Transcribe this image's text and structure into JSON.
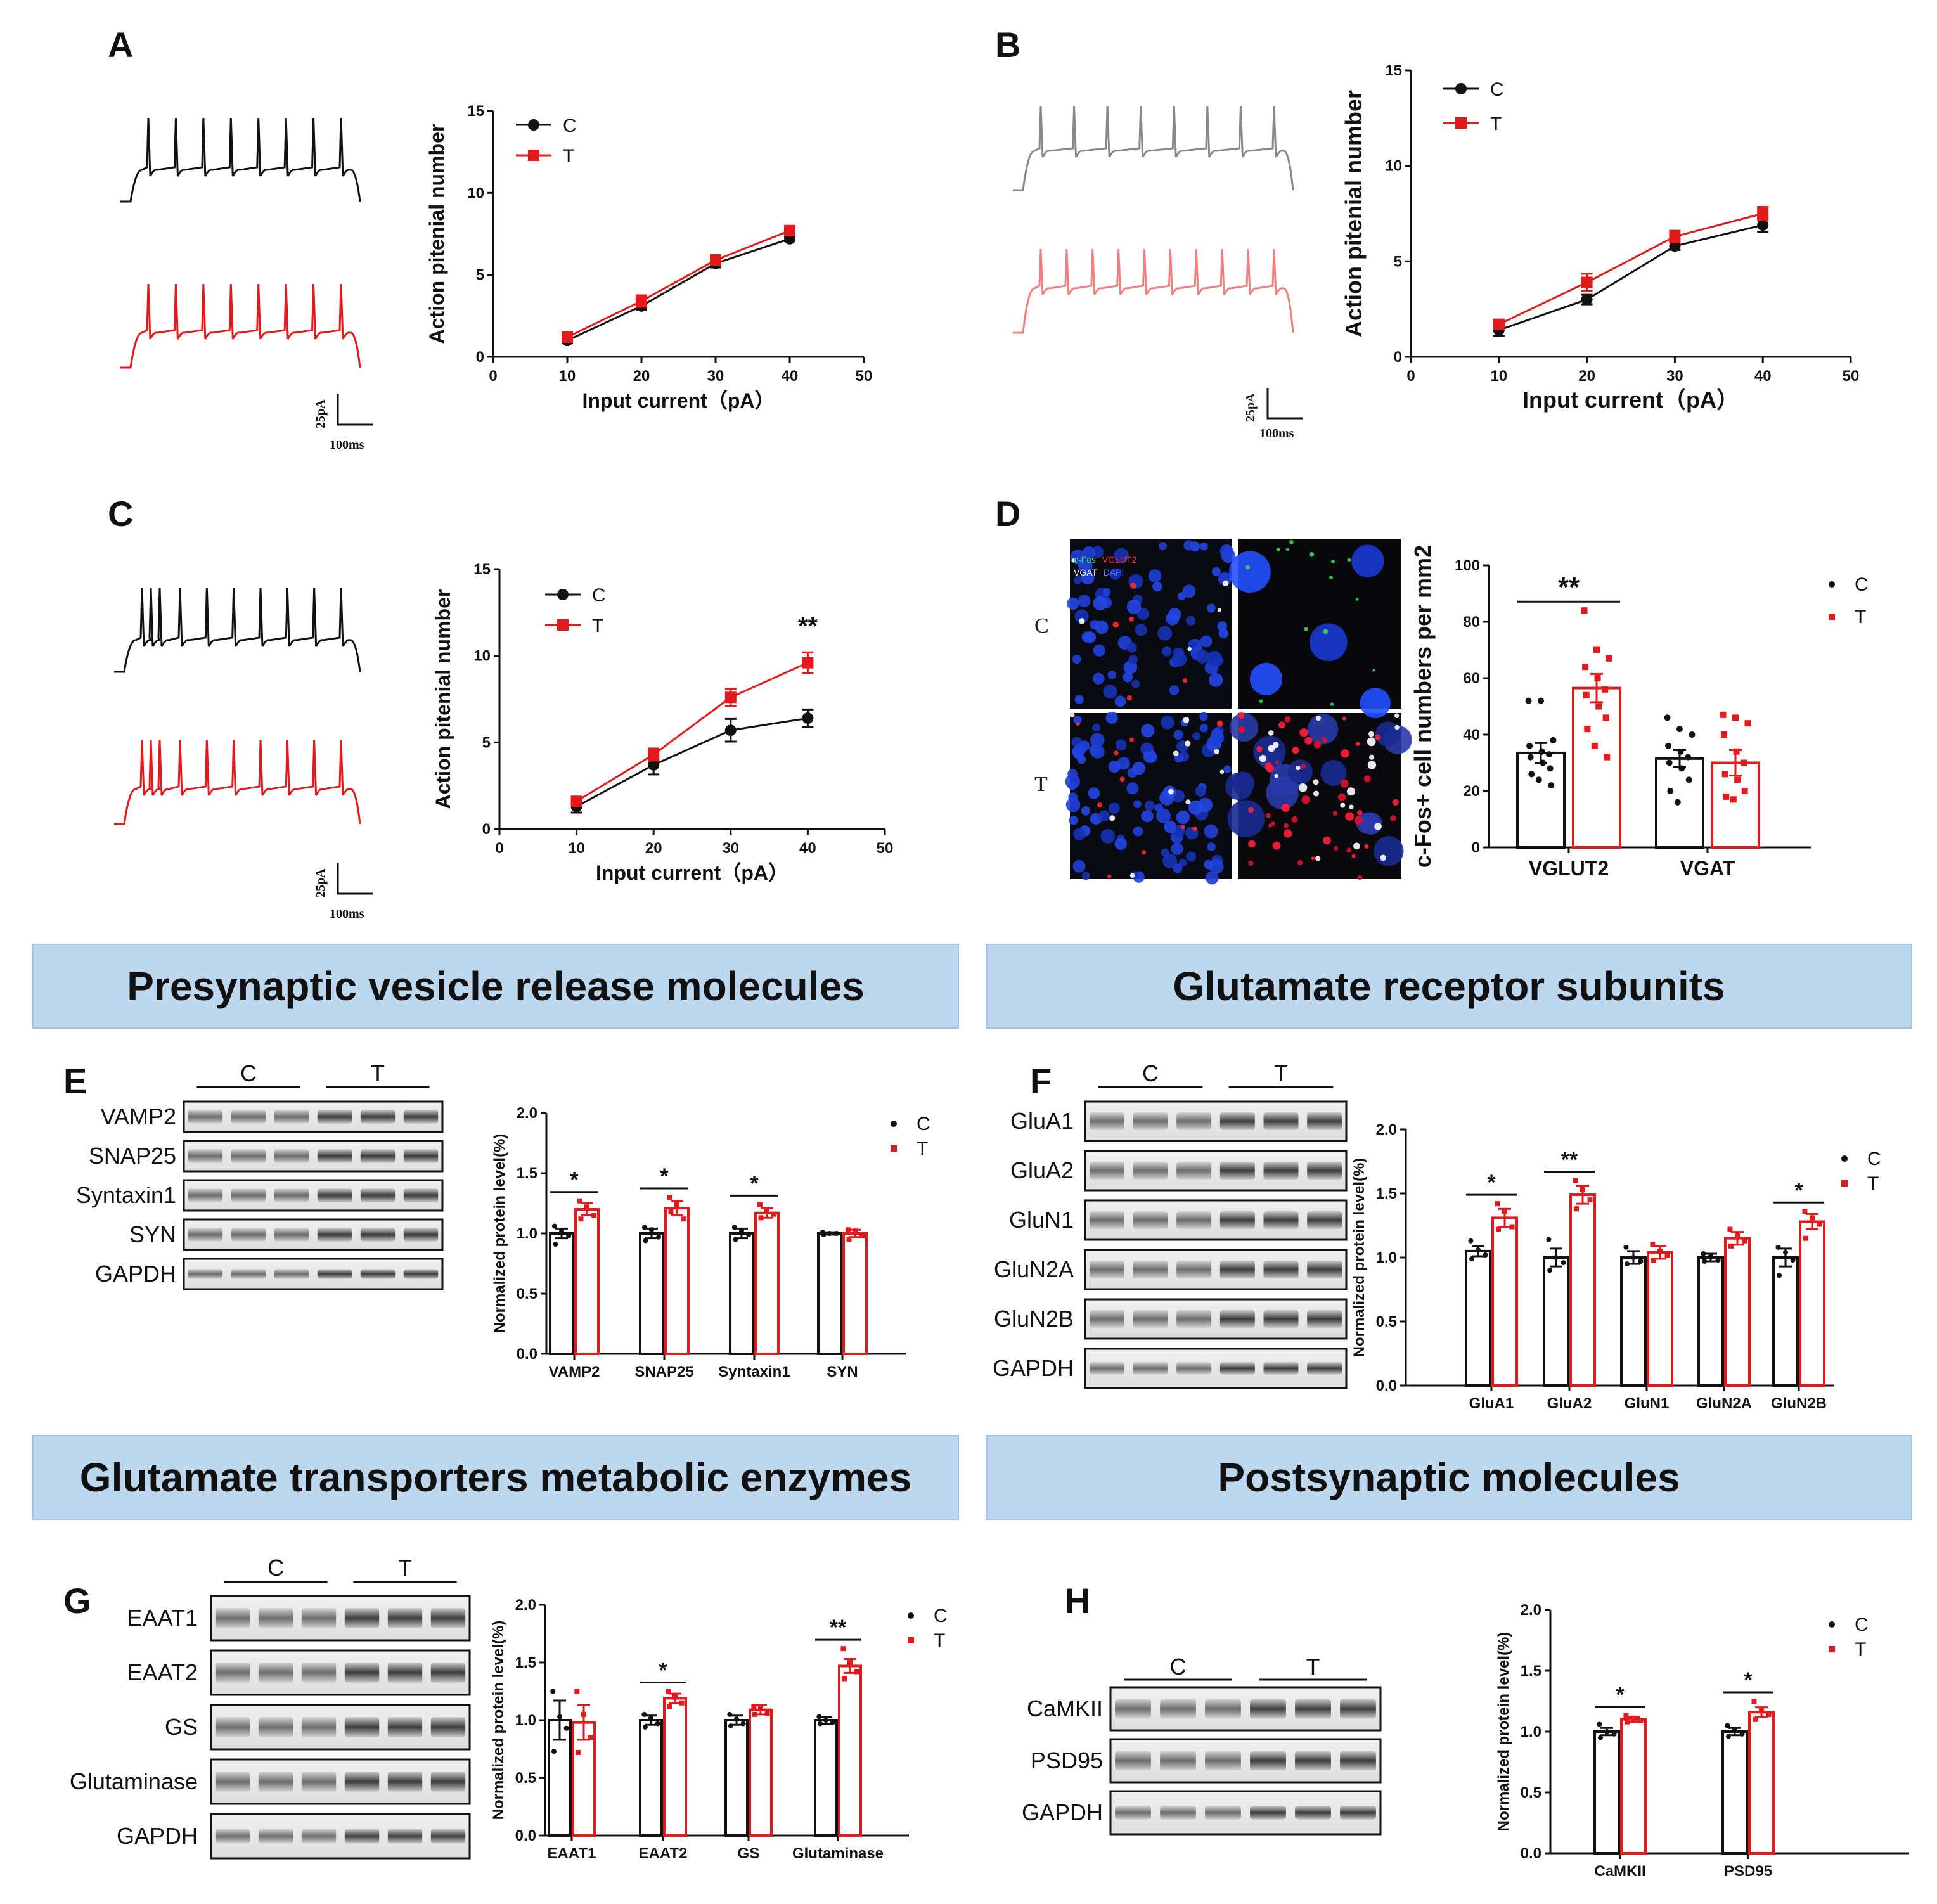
{
  "colors": {
    "control": "#111111",
    "treated": "#e31a1c",
    "banner": "#bdd7ee",
    "banner_border": "#9dc3e6"
  },
  "panel_letters": {
    "A": "A",
    "B": "B",
    "C": "C",
    "D": "D",
    "E": "E",
    "F": "F",
    "G": "G",
    "H": "H"
  },
  "section_headers": {
    "presynaptic": "Presynaptic vesicle release molecules",
    "glutamate_receptor": "Glutamate receptor subunits",
    "transporters": "Glutamate transporters metabolic enzymes",
    "postsynaptic": "Postsynaptic molecules"
  },
  "scale_bar": {
    "current": "25pA",
    "time": "100ms"
  },
  "microscopy": {
    "row_c": "C",
    "row_t": "T",
    "stain_line1_a": "c-Fos",
    "stain_line1_b": "VGLUT2",
    "stain_line2_a": "VGAT",
    "stain_line2_b": "DAPI"
  },
  "blot_groups": {
    "control": "C",
    "treated": "T"
  },
  "blots": {
    "E": [
      "VAMP2",
      "SNAP25",
      "Syntaxin1",
      "SYN",
      "GAPDH"
    ],
    "F": [
      "GluA1",
      "GluA2",
      "GluN1",
      "GluN2A",
      "GluN2B",
      "GAPDH"
    ],
    "G": [
      "EAAT1",
      "EAAT2",
      "GS",
      "Glutaminase",
      "GAPDH"
    ],
    "H": [
      "CaMKII",
      "PSD95",
      "GAPDH"
    ]
  },
  "chart_data": [
    {
      "id": "A",
      "type": "line",
      "title": "",
      "xlabel": "Input current（pA）",
      "ylabel": "Action pitenial number",
      "xlim": [
        0,
        50
      ],
      "ylim": [
        0,
        15
      ],
      "xticks": [
        0,
        10,
        20,
        30,
        40,
        50
      ],
      "yticks": [
        0,
        5,
        10,
        15
      ],
      "legend_position": "top-left",
      "series": [
        {
          "name": "C",
          "x": [
            10,
            20,
            30,
            40
          ],
          "y": [
            1.0,
            3.1,
            5.7,
            7.2
          ],
          "err": [
            0.15,
            0.25,
            0.25,
            0.15
          ]
        },
        {
          "name": "T",
          "x": [
            10,
            20,
            30,
            40
          ],
          "y": [
            1.2,
            3.4,
            5.9,
            7.7
          ],
          "err": [
            0.15,
            0.35,
            0.3,
            0.2
          ]
        }
      ],
      "annotations": []
    },
    {
      "id": "B",
      "type": "line",
      "title": "",
      "xlabel": "Input current（pA）",
      "ylabel": "Action pitenial number",
      "xlim": [
        0,
        50
      ],
      "ylim": [
        0,
        15
      ],
      "xticks": [
        0,
        10,
        20,
        30,
        40,
        50
      ],
      "yticks": [
        0,
        5,
        10,
        15
      ],
      "legend_position": "top-left",
      "series": [
        {
          "name": "C",
          "x": [
            10,
            20,
            30,
            40
          ],
          "y": [
            1.4,
            3.0,
            5.8,
            6.9
          ],
          "err": [
            0.3,
            0.25,
            0.2,
            0.35
          ]
        },
        {
          "name": "T",
          "x": [
            10,
            20,
            30,
            40
          ],
          "y": [
            1.7,
            3.9,
            6.3,
            7.5
          ],
          "err": [
            0.25,
            0.45,
            0.3,
            0.35
          ]
        }
      ],
      "annotations": []
    },
    {
      "id": "C",
      "type": "line",
      "title": "",
      "xlabel": "Input current（pA）",
      "ylabel": "Action pitenial number",
      "xlim": [
        0,
        50
      ],
      "ylim": [
        0,
        15
      ],
      "xticks": [
        0,
        10,
        20,
        30,
        40,
        50
      ],
      "yticks": [
        0,
        5,
        10,
        15
      ],
      "legend_position": "top-left",
      "series": [
        {
          "name": "C",
          "x": [
            10,
            20,
            30,
            40
          ],
          "y": [
            1.3,
            3.7,
            5.7,
            6.4
          ],
          "err": [
            0.35,
            0.55,
            0.65,
            0.5
          ]
        },
        {
          "name": "T",
          "x": [
            10,
            20,
            30,
            40
          ],
          "y": [
            1.6,
            4.3,
            7.6,
            9.6
          ],
          "err": [
            0.25,
            0.35,
            0.5,
            0.6
          ]
        }
      ],
      "annotations": [
        {
          "x": 40,
          "text": "**"
        }
      ]
    },
    {
      "id": "D",
      "type": "bar",
      "title": "",
      "xlabel": "",
      "ylabel": "c-Fos+ cell numbers per mm2",
      "ylim": [
        0,
        100
      ],
      "yticks": [
        0,
        20,
        40,
        60,
        80,
        100
      ],
      "legend_position": "top-right",
      "categories": [
        "VGLUT2",
        "VGAT"
      ],
      "series": [
        {
          "name": "C",
          "values": [
            33.5,
            31.5
          ],
          "err": [
            3.5,
            3.0
          ],
          "points": [
            [
              52,
              52,
              38,
              36,
              34,
              33,
              32,
              30,
              28,
              26,
              24,
              22
            ],
            [
              46,
              42,
              40,
              36,
              34,
              32,
              30,
              28,
              24,
              20,
              16
            ]
          ]
        },
        {
          "name": "T",
          "values": [
            56.5,
            30.0
          ],
          "err": [
            5.0,
            4.5
          ],
          "points": [
            [
              84,
              70,
              67,
              64,
              60,
              56,
              54,
              50,
              46,
              42,
              36,
              32
            ],
            [
              47,
              46,
              44,
              40,
              34,
              30,
              26,
              24,
              20,
              18,
              17
            ]
          ]
        }
      ],
      "annotations": [
        {
          "pair": 0,
          "text": "**"
        }
      ]
    },
    {
      "id": "E",
      "type": "bar",
      "title": "",
      "xlabel": "",
      "ylabel": "Normalized protein level(%)",
      "ylim": [
        0,
        2.0
      ],
      "yticks": [
        0.0,
        0.5,
        1.0,
        1.5,
        2.0
      ],
      "legend_position": "top-right",
      "categories": [
        "VAMP2",
        "SNAP25",
        "Syntaxin1",
        "SYN"
      ],
      "series": [
        {
          "name": "C",
          "values": [
            1.0,
            1.0,
            1.0,
            1.0
          ],
          "err": [
            0.04,
            0.04,
            0.04,
            0.01
          ],
          "points": [
            [
              1.06,
              1.02,
              0.98,
              0.91
            ],
            [
              1.05,
              1.03,
              0.97,
              0.94
            ],
            [
              1.05,
              1.02,
              0.99,
              0.95
            ],
            [
              1.01,
              1.0,
              1.0,
              0.99
            ]
          ]
        },
        {
          "name": "T",
          "values": [
            1.2,
            1.21,
            1.17,
            1.0
          ],
          "err": [
            0.05,
            0.06,
            0.04,
            0.03
          ],
          "points": [
            [
              1.27,
              1.22,
              1.15,
              1.12
            ],
            [
              1.3,
              1.24,
              1.12,
              1.18
            ],
            [
              1.24,
              1.2,
              1.16,
              1.13
            ],
            [
              1.03,
              1.02,
              0.98,
              0.95
            ]
          ]
        }
      ],
      "annotations": [
        {
          "pair": 0,
          "text": "*"
        },
        {
          "pair": 1,
          "text": "*"
        },
        {
          "pair": 2,
          "text": "*"
        }
      ]
    },
    {
      "id": "F",
      "type": "bar",
      "title": "",
      "xlabel": "",
      "ylabel": "Normalized protein level(%)",
      "ylim": [
        0,
        2.0
      ],
      "yticks": [
        0.0,
        0.5,
        1.0,
        1.5,
        2.0
      ],
      "legend_position": "top-right",
      "categories": [
        "GluA1",
        "GluA2",
        "GluN1",
        "GluN2A",
        "GluN2B"
      ],
      "series": [
        {
          "name": "C",
          "values": [
            1.05,
            1.0,
            1.0,
            1.0,
            1.0
          ],
          "err": [
            0.04,
            0.07,
            0.05,
            0.03,
            0.07
          ],
          "points": [
            [
              1.13,
              1.06,
              1.02,
              0.99
            ],
            [
              1.14,
              1.0,
              0.96,
              0.9
            ],
            [
              1.08,
              1.0,
              0.97,
              0.95
            ],
            [
              1.03,
              1.01,
              0.98,
              0.97
            ],
            [
              1.08,
              1.04,
              0.98,
              0.86
            ]
          ]
        },
        {
          "name": "T",
          "values": [
            1.31,
            1.49,
            1.04,
            1.15,
            1.28
          ],
          "err": [
            0.07,
            0.07,
            0.05,
            0.05,
            0.06
          ],
          "points": [
            [
              1.42,
              1.36,
              1.24,
              1.22
            ],
            [
              1.6,
              1.53,
              1.45,
              1.38
            ],
            [
              1.1,
              1.05,
              1.02,
              0.98
            ],
            [
              1.22,
              1.17,
              1.13,
              1.09
            ],
            [
              1.36,
              1.31,
              1.26,
              1.15
            ]
          ]
        }
      ],
      "annotations": [
        {
          "pair": 0,
          "text": "*"
        },
        {
          "pair": 1,
          "text": "**"
        },
        {
          "pair": 4,
          "text": "*"
        }
      ]
    },
    {
      "id": "G",
      "type": "bar",
      "title": "",
      "xlabel": "",
      "ylabel": "Normalized protein level(%)",
      "ylim": [
        0,
        2.0
      ],
      "yticks": [
        0.0,
        0.5,
        1.0,
        1.5,
        2.0
      ],
      "legend_position": "top-right",
      "categories": [
        "EAAT1",
        "EAAT2",
        "GS",
        "Glutaminase"
      ],
      "series": [
        {
          "name": "C",
          "values": [
            1.0,
            1.0,
            1.0,
            1.0
          ],
          "err": [
            0.17,
            0.04,
            0.04,
            0.03
          ],
          "points": [
            [
              1.25,
              1.03,
              0.93,
              0.73
            ],
            [
              1.05,
              1.02,
              0.97,
              0.94
            ],
            [
              1.05,
              1.01,
              0.97,
              0.95
            ],
            [
              1.03,
              1.0,
              0.98,
              0.97
            ]
          ]
        },
        {
          "name": "T",
          "values": [
            0.98,
            1.19,
            1.09,
            1.47
          ],
          "err": [
            0.15,
            0.04,
            0.04,
            0.06
          ],
          "points": [
            [
              1.25,
              1.05,
              0.85,
              0.72
            ],
            [
              1.25,
              1.2,
              1.15,
              1.12
            ],
            [
              1.12,
              1.1,
              1.06,
              1.05
            ],
            [
              1.62,
              1.5,
              1.42,
              1.36
            ]
          ]
        }
      ],
      "annotations": [
        {
          "pair": 1,
          "text": "*"
        },
        {
          "pair": 3,
          "text": "**"
        }
      ]
    },
    {
      "id": "H",
      "type": "bar",
      "title": "",
      "xlabel": "",
      "ylabel": "Normalized protein level(%)",
      "ylim": [
        0,
        2.0
      ],
      "yticks": [
        0.0,
        0.5,
        1.0,
        1.5,
        2.0
      ],
      "legend_position": "top-right",
      "categories": [
        "CaMKII",
        "PSD95"
      ],
      "series": [
        {
          "name": "C",
          "values": [
            1.0,
            1.0
          ],
          "err": [
            0.03,
            0.03
          ],
          "points": [
            [
              1.06,
              1.0,
              0.98,
              0.95
            ],
            [
              1.05,
              1.02,
              0.98,
              0.96
            ]
          ]
        },
        {
          "name": "T",
          "values": [
            1.1,
            1.16
          ],
          "err": [
            0.02,
            0.04
          ],
          "points": [
            [
              1.13,
              1.11,
              1.09,
              1.08
            ],
            [
              1.25,
              1.18,
              1.14,
              1.1
            ]
          ]
        }
      ],
      "annotations": [
        {
          "pair": 0,
          "text": "*"
        },
        {
          "pair": 1,
          "text": "*"
        }
      ]
    }
  ]
}
